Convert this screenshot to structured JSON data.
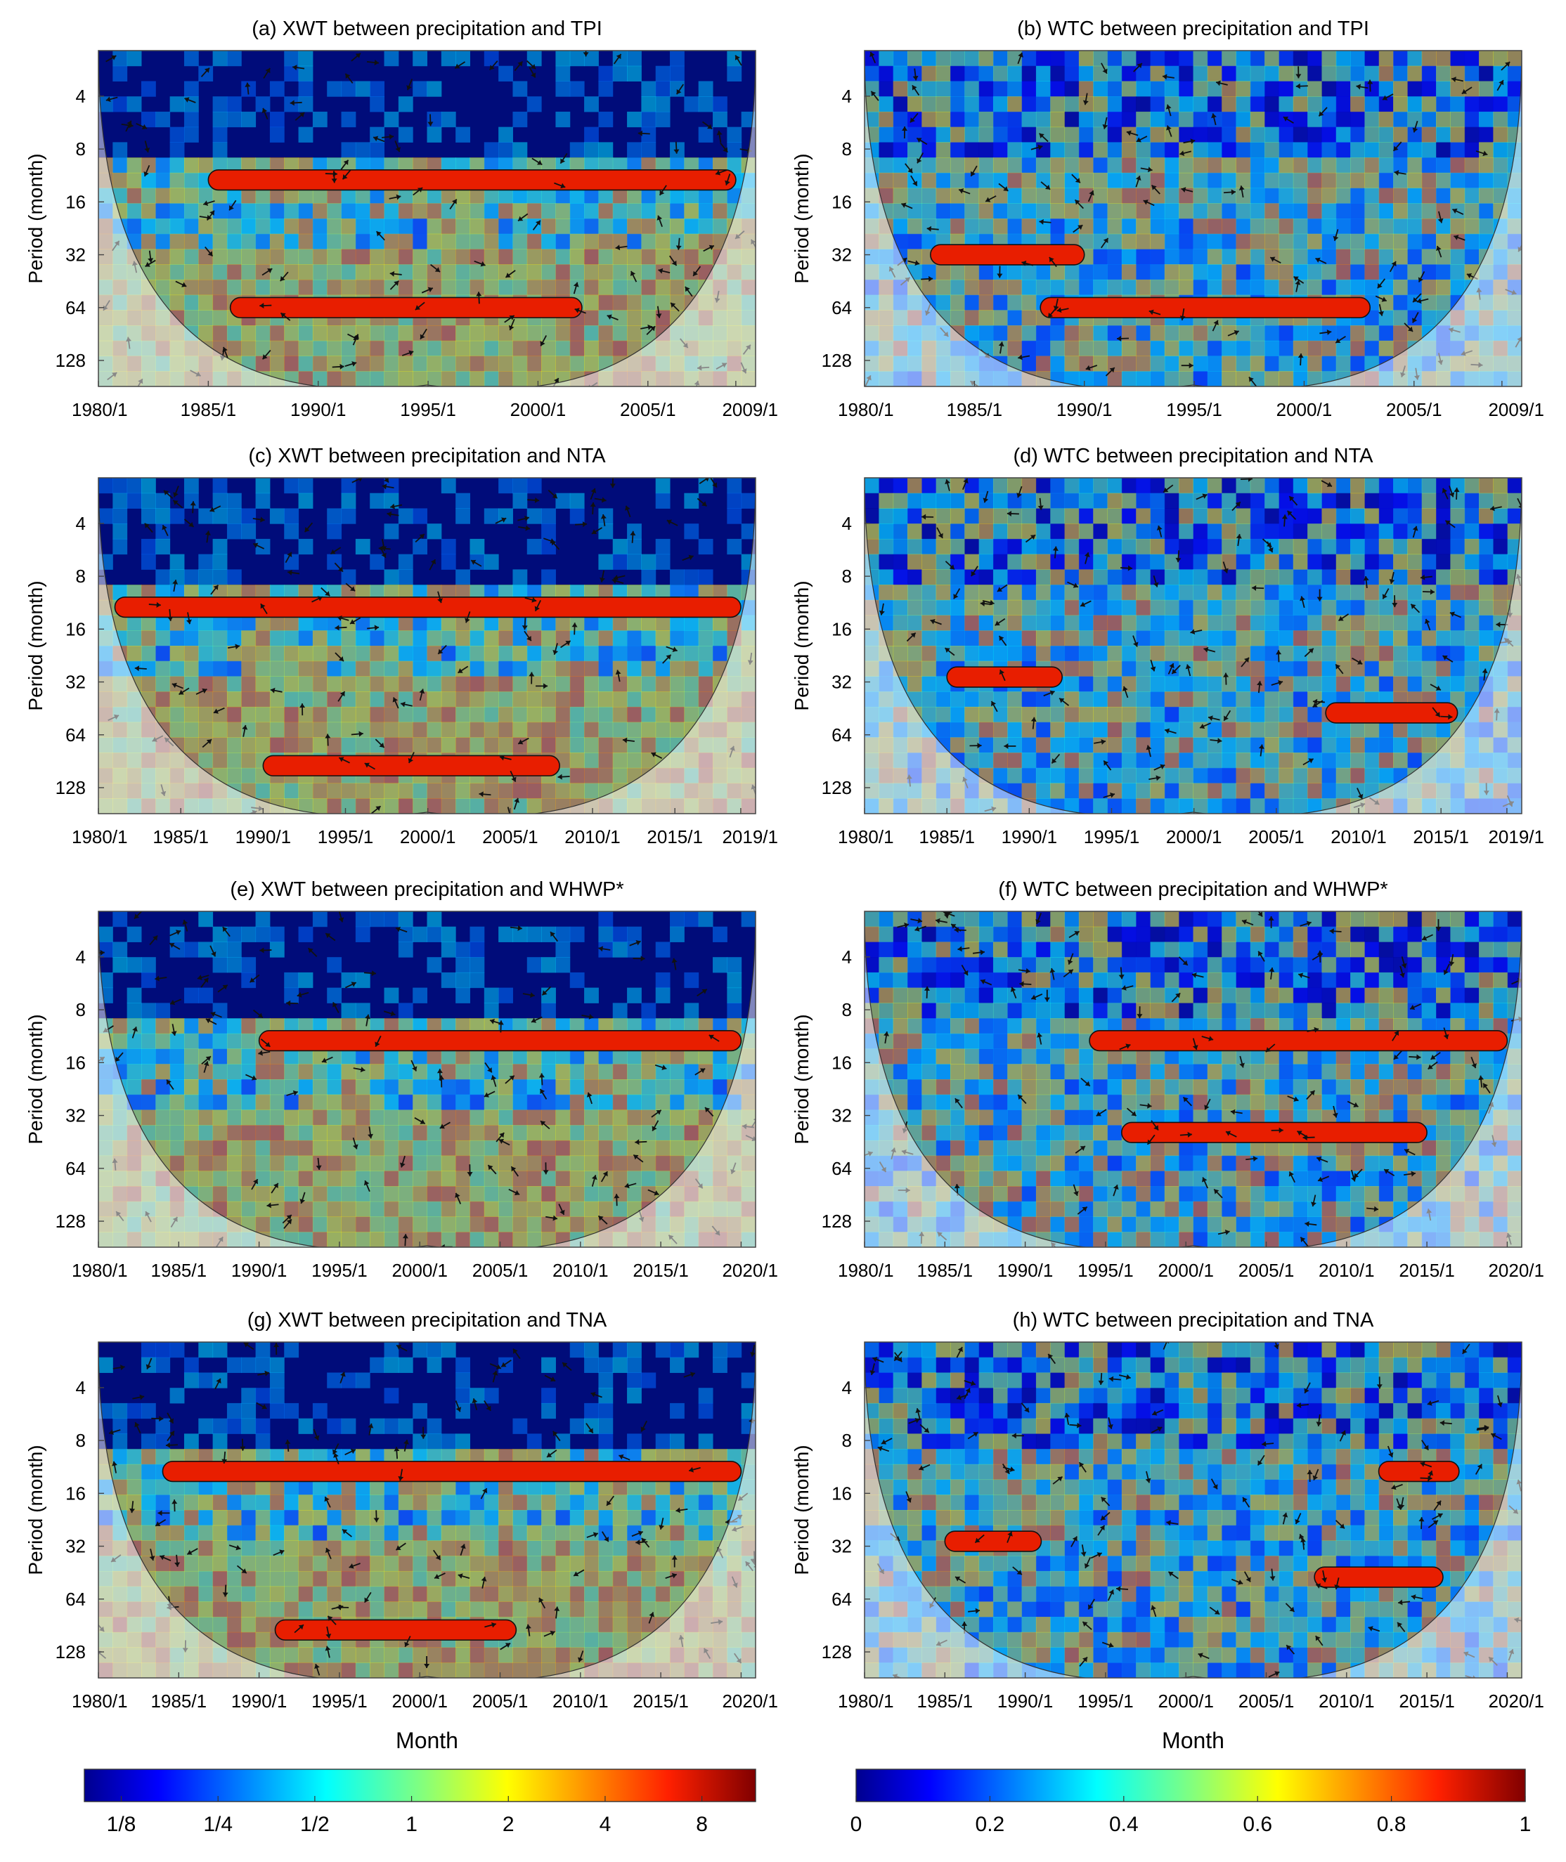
{
  "panels": [
    {
      "id": "a",
      "type": "XWT",
      "title": "(a) XWT between precipitation and TPI",
      "ylabel": "Period (month)",
      "y_ticks": [
        "4",
        "8",
        "16",
        "32",
        "64",
        "128"
      ],
      "x_ticks": [
        "1980/1",
        "1985/1",
        "1990/1",
        "1995/1",
        "2000/1",
        "2005/1",
        "2009/1"
      ],
      "x_range": [
        1980,
        2009
      ],
      "xlabel": ""
    },
    {
      "id": "b",
      "type": "WTC",
      "title": "(b) WTC between precipitation and TPI",
      "ylabel": "Period (month)",
      "y_ticks": [
        "4",
        "8",
        "16",
        "32",
        "64",
        "128"
      ],
      "x_ticks": [
        "1980/1",
        "1985/1",
        "1990/1",
        "1995/1",
        "2000/1",
        "2005/1",
        "2009/1"
      ],
      "x_range": [
        1980,
        2009
      ],
      "xlabel": ""
    },
    {
      "id": "c",
      "type": "XWT",
      "title": "(c) XWT between precipitation and NTA",
      "ylabel": "Period (month)",
      "y_ticks": [
        "4",
        "8",
        "16",
        "32",
        "64",
        "128"
      ],
      "x_ticks": [
        "1980/1",
        "1985/1",
        "1990/1",
        "1995/1",
        "2000/1",
        "2005/1",
        "2010/1",
        "2015/1",
        "2019/1"
      ],
      "x_range": [
        1980,
        2019
      ],
      "xlabel": ""
    },
    {
      "id": "d",
      "type": "WTC",
      "title": "(d) WTC between precipitation and NTA",
      "ylabel": "Period (month)",
      "y_ticks": [
        "4",
        "8",
        "16",
        "32",
        "64",
        "128"
      ],
      "x_ticks": [
        "1980/1",
        "1985/1",
        "1990/1",
        "1995/1",
        "2000/1",
        "2005/1",
        "2010/1",
        "2015/1",
        "2019/1"
      ],
      "x_range": [
        1980,
        2019
      ],
      "xlabel": ""
    },
    {
      "id": "e",
      "type": "XWT",
      "title": "(e) XWT between precipitation and WHWP*",
      "ylabel": "Period (month)",
      "y_ticks": [
        "4",
        "8",
        "16",
        "32",
        "64",
        "128"
      ],
      "x_ticks": [
        "1980/1",
        "1985/1",
        "1990/1",
        "1995/1",
        "2000/1",
        "2005/1",
        "2010/1",
        "2015/1",
        "2020/1"
      ],
      "x_range": [
        1980,
        2020
      ],
      "xlabel": ""
    },
    {
      "id": "f",
      "type": "WTC",
      "title": "(f) WTC between precipitation and WHWP*",
      "ylabel": "Period (month)",
      "y_ticks": [
        "4",
        "8",
        "16",
        "32",
        "64",
        "128"
      ],
      "x_ticks": [
        "1980/1",
        "1985/1",
        "1990/1",
        "1995/1",
        "2000/1",
        "2005/1",
        "2010/1",
        "2015/1",
        "2020/1"
      ],
      "x_range": [
        1980,
        2020
      ],
      "xlabel": ""
    },
    {
      "id": "g",
      "type": "XWT",
      "title": "(g) XWT between precipitation and TNA",
      "ylabel": "Period (month)",
      "y_ticks": [
        "4",
        "8",
        "16",
        "32",
        "64",
        "128"
      ],
      "x_ticks": [
        "1980/1",
        "1985/1",
        "1990/1",
        "1995/1",
        "2000/1",
        "2005/1",
        "2010/1",
        "2015/1",
        "2020/1"
      ],
      "x_range": [
        1980,
        2020
      ],
      "xlabel": "Month"
    },
    {
      "id": "h",
      "type": "WTC",
      "title": "(h) WTC between precipitation and TNA",
      "ylabel": "Period (month)",
      "y_ticks": [
        "4",
        "8",
        "16",
        "32",
        "64",
        "128"
      ],
      "x_ticks": [
        "1980/1",
        "1985/1",
        "1990/1",
        "1995/1",
        "2000/1",
        "2005/1",
        "2010/1",
        "2015/1",
        "2020/1"
      ],
      "x_range": [
        1980,
        2020
      ],
      "xlabel": "Month"
    }
  ],
  "colorbars": [
    {
      "name": "xwt-colorbar",
      "scale": "log2",
      "ticks": [
        "1/8",
        "1/4",
        "1/2",
        "1",
        "2",
        "4",
        "8"
      ]
    },
    {
      "name": "wtc-colorbar",
      "scale": "linear",
      "ticks": [
        "0",
        "0.2",
        "0.4",
        "0.6",
        "0.8",
        "1"
      ]
    }
  ],
  "chart_data": [
    {
      "type": "heatmap",
      "title": "(a) XWT between precipitation and TPI",
      "ylabel": "Period (month)",
      "y_scale": "log2",
      "y_ticks": [
        4,
        8,
        16,
        32,
        64,
        128
      ],
      "x_range": [
        1980,
        2009
      ],
      "colormap": "jet",
      "color_scale": [
        0.125,
        8
      ],
      "significant_bands": [
        {
          "period": 12,
          "from": 1985,
          "to": 2009
        },
        {
          "period": 64,
          "from": 1986,
          "to": 2002
        }
      ]
    },
    {
      "type": "heatmap",
      "title": "(b) WTC between precipitation and TPI",
      "ylabel": "Period (month)",
      "y_scale": "log2",
      "y_ticks": [
        4,
        8,
        16,
        32,
        64,
        128
      ],
      "x_range": [
        1980,
        2009
      ],
      "colormap": "jet",
      "color_scale": [
        0,
        1
      ],
      "significant_bands": [
        {
          "period": 64,
          "from": 1988,
          "to": 2003
        },
        {
          "period": 32,
          "from": 1983,
          "to": 1990
        }
      ]
    },
    {
      "type": "heatmap",
      "title": "(c) XWT between precipitation and NTA",
      "ylabel": "Period (month)",
      "y_scale": "log2",
      "y_ticks": [
        4,
        8,
        16,
        32,
        64,
        128
      ],
      "x_range": [
        1980,
        2019
      ],
      "colormap": "jet",
      "color_scale": [
        0.125,
        8
      ],
      "significant_bands": [
        {
          "period": 12,
          "from": 1981,
          "to": 2019
        },
        {
          "period": 96,
          "from": 1990,
          "to": 2008
        }
      ]
    },
    {
      "type": "heatmap",
      "title": "(d) WTC between precipitation and NTA",
      "ylabel": "Period (month)",
      "y_scale": "log2",
      "y_ticks": [
        4,
        8,
        16,
        32,
        64,
        128
      ],
      "x_range": [
        1980,
        2019
      ],
      "colormap": "jet",
      "color_scale": [
        0,
        1
      ],
      "significant_bands": [
        {
          "period": 30,
          "from": 1985,
          "to": 1992
        },
        {
          "period": 48,
          "from": 2008,
          "to": 2016
        }
      ]
    },
    {
      "type": "heatmap",
      "title": "(e) XWT between precipitation and WHWP*",
      "ylabel": "Period (month)",
      "y_scale": "log2",
      "y_ticks": [
        4,
        8,
        16,
        32,
        64,
        128
      ],
      "x_range": [
        1980,
        2020
      ],
      "colormap": "jet",
      "color_scale": [
        0.125,
        8
      ],
      "significant_bands": [
        {
          "period": 12,
          "from": 1990,
          "to": 2020
        }
      ]
    },
    {
      "type": "heatmap",
      "title": "(f) WTC between precipitation and WHWP*",
      "ylabel": "Period (month)",
      "y_scale": "log2",
      "y_ticks": [
        4,
        8,
        16,
        32,
        64,
        128
      ],
      "x_range": [
        1980,
        2020
      ],
      "colormap": "jet",
      "color_scale": [
        0,
        1
      ],
      "significant_bands": [
        {
          "period": 12,
          "from": 1994,
          "to": 2020
        },
        {
          "period": 40,
          "from": 1996,
          "to": 2015
        }
      ]
    },
    {
      "type": "heatmap",
      "title": "(g) XWT between precipitation and TNA",
      "ylabel": "Period (month)",
      "y_scale": "log2",
      "y_ticks": [
        4,
        8,
        16,
        32,
        64,
        128
      ],
      "x_range": [
        1980,
        2020
      ],
      "colormap": "jet",
      "color_scale": [
        0.125,
        8
      ],
      "significant_bands": [
        {
          "period": 12,
          "from": 1984,
          "to": 2020
        },
        {
          "period": 96,
          "from": 1991,
          "to": 2006
        }
      ]
    },
    {
      "type": "heatmap",
      "title": "(h) WTC between precipitation and TNA",
      "ylabel": "Period (month)",
      "y_scale": "log2",
      "y_ticks": [
        4,
        8,
        16,
        32,
        64,
        128
      ],
      "x_range": [
        1980,
        2020
      ],
      "colormap": "jet",
      "color_scale": [
        0,
        1
      ],
      "significant_bands": [
        {
          "period": 12,
          "from": 2012,
          "to": 2017
        },
        {
          "period": 30,
          "from": 1985,
          "to": 1991
        },
        {
          "period": 48,
          "from": 2008,
          "to": 2016
        }
      ]
    }
  ]
}
